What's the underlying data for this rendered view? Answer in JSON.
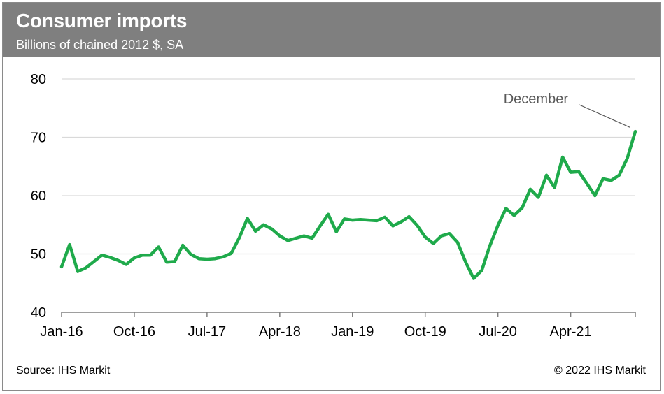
{
  "header": {
    "title": "Consumer imports",
    "subtitle": "Billions of chained 2012 $, SA"
  },
  "footer": {
    "source": "Source: IHS Markit",
    "copyright": "© 2022 IHS Markit"
  },
  "colors": {
    "header_bg": "#7f7f7f",
    "line": "#1faa4b",
    "grid": "#d9d9d9",
    "axis": "#7f7f7f"
  },
  "chart_data": {
    "type": "line",
    "title": "Consumer imports",
    "subtitle": "Billions of chained 2012 $, SA",
    "xlabel": "",
    "ylabel": "",
    "ylim": [
      40,
      80
    ],
    "yticks": [
      40,
      50,
      60,
      70,
      80
    ],
    "grid": true,
    "x_tick_labels": [
      "Jan-16",
      "Oct-16",
      "Jul-17",
      "Apr-18",
      "Jan-19",
      "Oct-19",
      "Jul-20",
      "Apr-21"
    ],
    "annotation": {
      "text": "December",
      "x": "Dec-21",
      "y": 71.0
    },
    "series": [
      {
        "x": [
          "Jan-16",
          "Feb-16",
          "Mar-16",
          "Apr-16",
          "May-16",
          "Jun-16",
          "Jul-16",
          "Aug-16",
          "Sep-16",
          "Oct-16",
          "Nov-16",
          "Dec-16",
          "Jan-17",
          "Feb-17",
          "Mar-17",
          "Apr-17",
          "May-17",
          "Jun-17",
          "Jul-17",
          "Aug-17",
          "Sep-17",
          "Oct-17",
          "Nov-17",
          "Dec-17",
          "Jan-18",
          "Feb-18",
          "Mar-18",
          "Apr-18",
          "May-18",
          "Jun-18",
          "Jul-18",
          "Aug-18",
          "Sep-18",
          "Oct-18",
          "Nov-18",
          "Dec-18",
          "Jan-19",
          "Feb-19",
          "Mar-19",
          "Apr-19",
          "May-19",
          "Jun-19",
          "Jul-19",
          "Aug-19",
          "Sep-19",
          "Oct-19",
          "Nov-19",
          "Dec-19",
          "Jan-20",
          "Feb-20",
          "Mar-20",
          "Apr-20",
          "May-20",
          "Jun-20",
          "Jul-20",
          "Aug-20",
          "Sep-20",
          "Oct-20",
          "Nov-20",
          "Dec-20",
          "Jan-21",
          "Feb-21",
          "Mar-21",
          "Apr-21",
          "May-21",
          "Jun-21",
          "Jul-21",
          "Aug-21",
          "Sep-21",
          "Oct-21",
          "Nov-21",
          "Dec-21"
        ],
        "values": [
          47.8,
          51.6,
          47.0,
          47.6,
          48.7,
          49.8,
          49.4,
          48.9,
          48.2,
          49.3,
          49.8,
          49.8,
          51.2,
          48.6,
          48.7,
          51.5,
          49.9,
          49.2,
          49.1,
          49.2,
          49.5,
          50.1,
          52.8,
          56.1,
          53.9,
          55.0,
          54.3,
          53.1,
          52.3,
          52.7,
          53.1,
          52.7,
          54.8,
          56.8,
          53.8,
          56.0,
          55.8,
          55.9,
          55.8,
          55.7,
          56.3,
          54.8,
          55.5,
          56.4,
          54.9,
          52.9,
          51.8,
          53.1,
          53.5,
          52.0,
          48.6,
          45.8,
          47.2,
          51.4,
          54.9,
          57.8,
          56.6,
          57.9,
          61.1,
          59.7,
          63.5,
          61.4,
          66.6,
          64.0,
          64.1,
          62.1,
          60.0,
          62.9,
          62.6,
          63.5,
          66.4,
          71.0
        ]
      }
    ]
  }
}
